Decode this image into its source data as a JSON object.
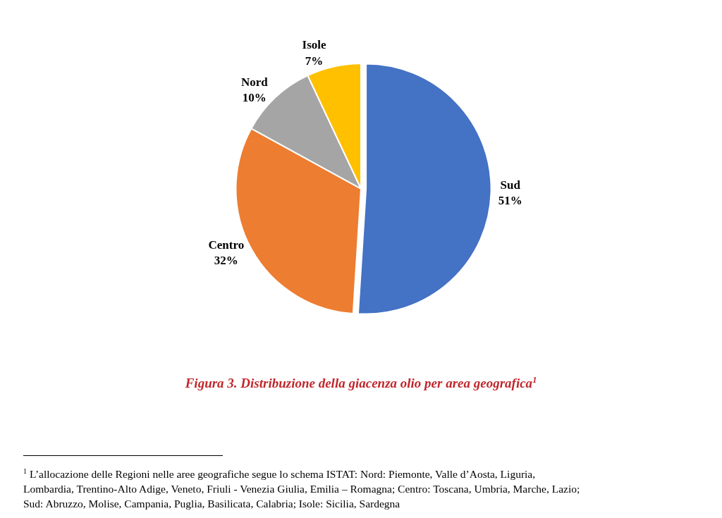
{
  "chart_data": {
    "type": "pie",
    "title": "Figura 3. Distribuzione della giacenza olio per area geografica$^{1}$",
    "categories": [
      "Sud",
      "Centro",
      "Nord",
      "Isole"
    ],
    "values": [
      51,
      32,
      10,
      7
    ],
    "value_labels": [
      "51%",
      "32%",
      "10%",
      "7%"
    ],
    "colors": [
      "#4472c4",
      "#ed7d31",
      "#a5a5a5",
      "#ffc000"
    ],
    "annotations": [
      "$^{1}$ L’allocazione delle Regioni nelle aree geografiche segue lo schema ISTAT: Nord: Piemonte, Valle d’Aosta, Liguria, Lombardia, Trentino-Alto Adige, Veneto, Friuli - Venezia Giulia, Emilia – Romagna; Centro: Toscana, Umbria, Marche, Lazio; Sud: Abruzzo, Molise, Campania, Puglia, Basilicata, Calabria; Isole: Sicilia, Sardegna"
    ]
  }
}
